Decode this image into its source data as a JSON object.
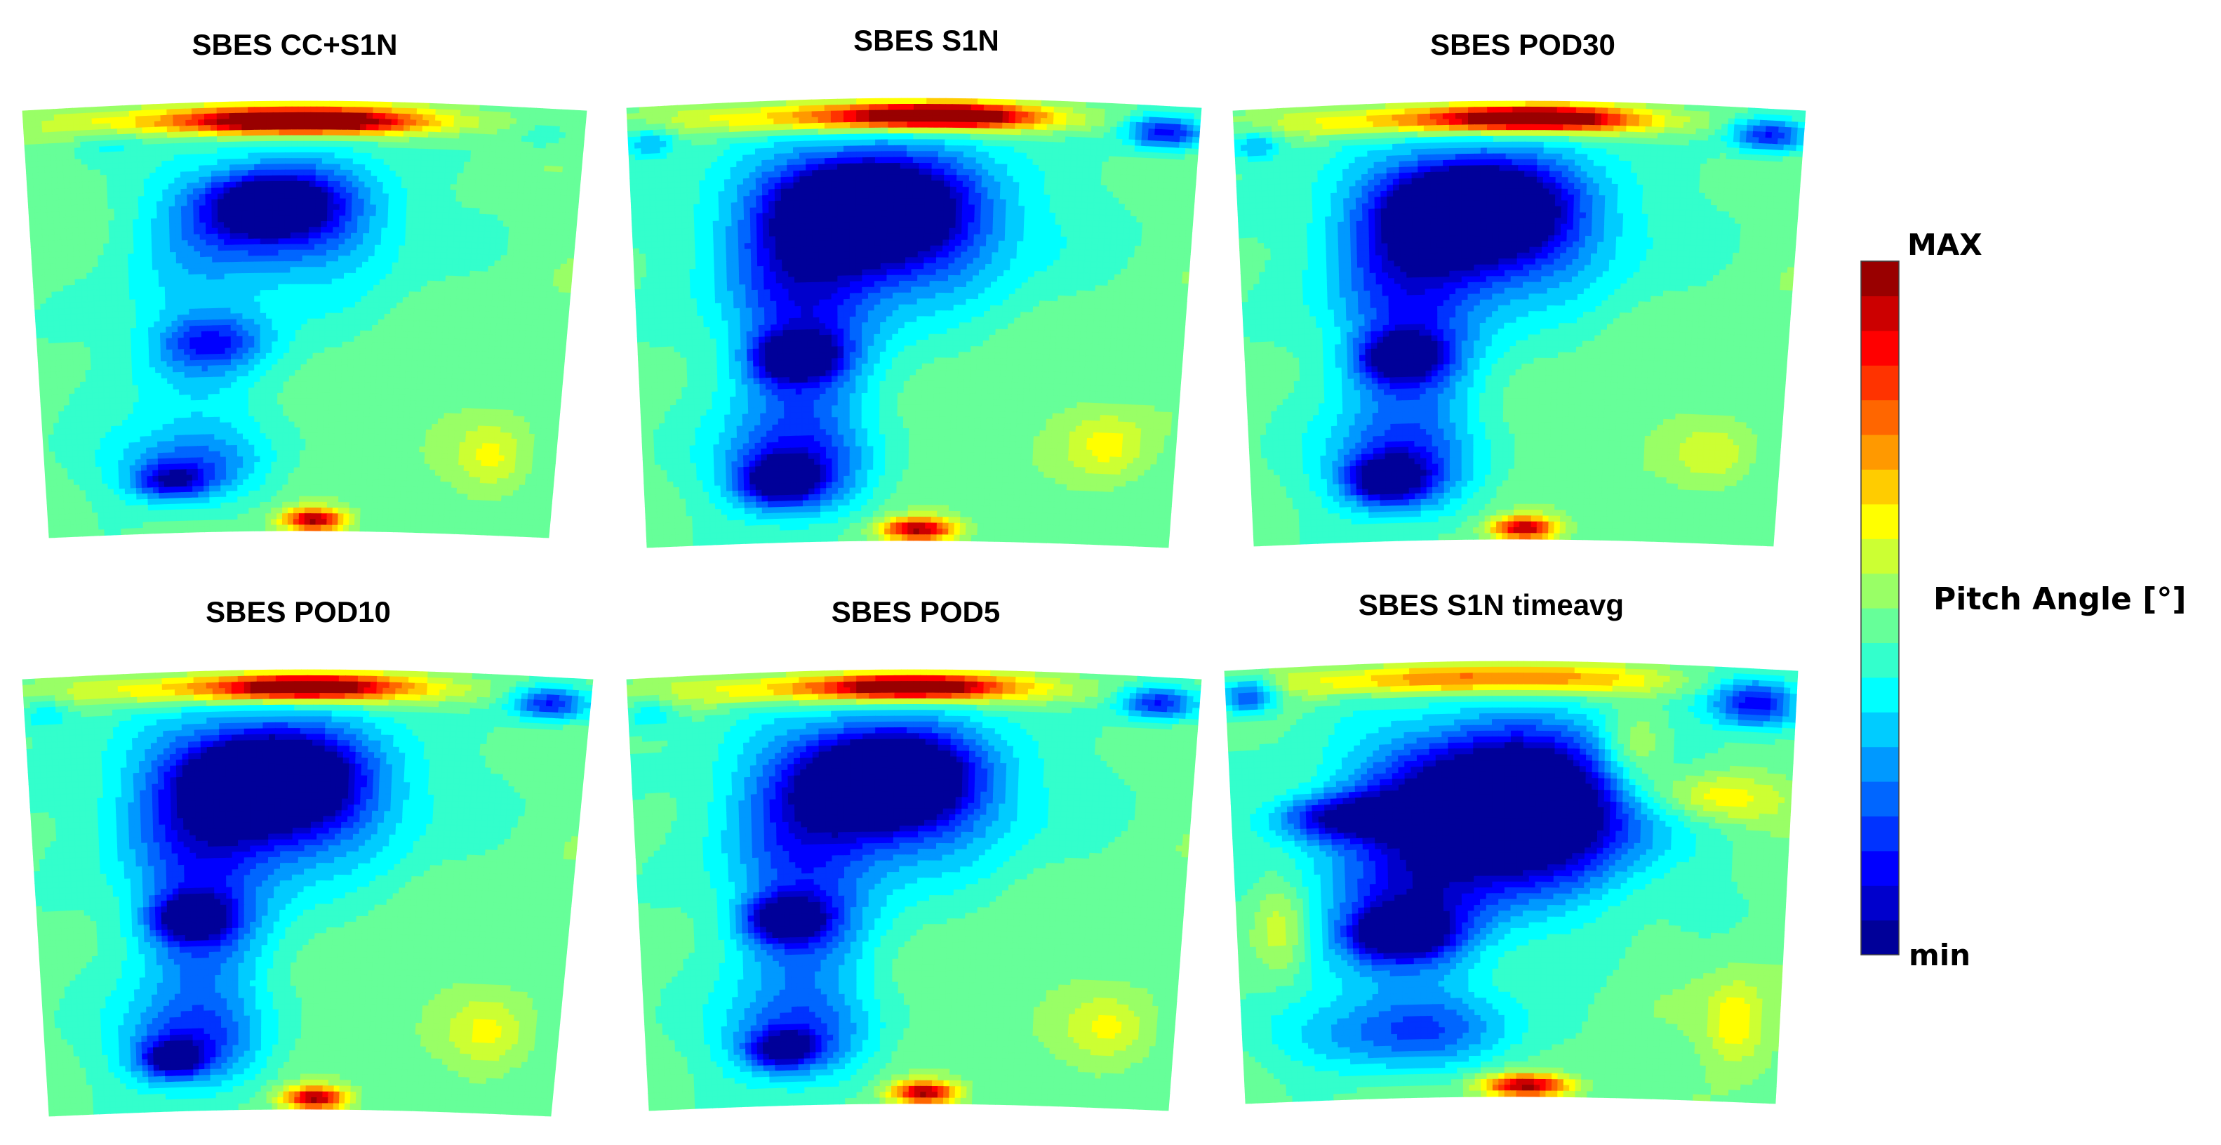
{
  "chart_data": {
    "type": "heatmap",
    "colormap": "jet (discrete, 20 levels)",
    "panels": [
      {
        "title": "SBES CC+S1N",
        "blobs": [
          {
            "u": 0.45,
            "v": 0.04,
            "a": 0.3,
            "b": 0.035,
            "val": 0.87
          },
          {
            "u": 0.5,
            "v": 0.05,
            "a": 0.16,
            "b": 0.025,
            "val": 0.93
          },
          {
            "u": 0.14,
            "v": 0.09,
            "a": 0.06,
            "b": 0.04,
            "val": 0.4
          },
          {
            "u": 0.93,
            "v": 0.06,
            "a": 0.06,
            "b": 0.04,
            "val": 0.4
          },
          {
            "u": 0.47,
            "v": 0.28,
            "a": 0.24,
            "b": 0.18,
            "val": 0.28
          },
          {
            "u": 0.44,
            "v": 0.25,
            "a": 0.15,
            "b": 0.1,
            "val": 0.18
          },
          {
            "u": 0.44,
            "v": 0.24,
            "a": 0.08,
            "b": 0.05,
            "val": 0.1
          },
          {
            "u": 0.3,
            "v": 0.58,
            "a": 0.18,
            "b": 0.24,
            "val": 0.35
          },
          {
            "u": 0.33,
            "v": 0.56,
            "a": 0.1,
            "b": 0.06,
            "val": 0.27
          },
          {
            "u": 0.27,
            "v": 0.84,
            "a": 0.15,
            "b": 0.09,
            "val": 0.26
          },
          {
            "u": 0.25,
            "v": 0.88,
            "a": 0.07,
            "b": 0.04,
            "val": 0.2
          },
          {
            "u": 0.88,
            "v": 0.82,
            "a": 0.07,
            "b": 0.08,
            "val": 0.62
          },
          {
            "u": 0.53,
            "v": 0.975,
            "a": 0.06,
            "b": 0.025,
            "val": 0.96
          }
        ]
      },
      {
        "title": "SBES S1N",
        "blobs": [
          {
            "u": 0.45,
            "v": 0.04,
            "a": 0.3,
            "b": 0.035,
            "val": 0.87
          },
          {
            "u": 0.55,
            "v": 0.04,
            "a": 0.14,
            "b": 0.025,
            "val": 0.95
          },
          {
            "u": 0.94,
            "v": 0.06,
            "a": 0.07,
            "b": 0.04,
            "val": 0.1
          },
          {
            "u": 0.04,
            "v": 0.08,
            "a": 0.05,
            "b": 0.04,
            "val": 0.3
          },
          {
            "u": 0.44,
            "v": 0.28,
            "a": 0.28,
            "b": 0.2,
            "val": 0.18
          },
          {
            "u": 0.43,
            "v": 0.26,
            "a": 0.16,
            "b": 0.12,
            "val": 0.07
          },
          {
            "u": 0.4,
            "v": 0.24,
            "a": 0.1,
            "b": 0.07,
            "val": 0.02
          },
          {
            "u": 0.3,
            "v": 0.55,
            "a": 0.14,
            "b": 0.26,
            "val": 0.18
          },
          {
            "u": 0.29,
            "v": 0.58,
            "a": 0.07,
            "b": 0.05,
            "val": 0.06
          },
          {
            "u": 0.27,
            "v": 0.83,
            "a": 0.14,
            "b": 0.11,
            "val": 0.2
          },
          {
            "u": 0.26,
            "v": 0.86,
            "a": 0.07,
            "b": 0.05,
            "val": 0.12
          },
          {
            "u": 0.88,
            "v": 0.78,
            "a": 0.08,
            "b": 0.08,
            "val": 0.62
          },
          {
            "u": 0.52,
            "v": 0.975,
            "a": 0.07,
            "b": 0.025,
            "val": 0.96
          }
        ]
      },
      {
        "title": "SBES POD30",
        "blobs": [
          {
            "u": 0.45,
            "v": 0.04,
            "a": 0.3,
            "b": 0.035,
            "val": 0.87
          },
          {
            "u": 0.53,
            "v": 0.04,
            "a": 0.13,
            "b": 0.025,
            "val": 0.93
          },
          {
            "u": 0.94,
            "v": 0.06,
            "a": 0.07,
            "b": 0.04,
            "val": 0.12
          },
          {
            "u": 0.04,
            "v": 0.08,
            "a": 0.05,
            "b": 0.04,
            "val": 0.3
          },
          {
            "u": 0.44,
            "v": 0.28,
            "a": 0.27,
            "b": 0.2,
            "val": 0.2
          },
          {
            "u": 0.43,
            "v": 0.26,
            "a": 0.16,
            "b": 0.12,
            "val": 0.08
          },
          {
            "u": 0.4,
            "v": 0.24,
            "a": 0.1,
            "b": 0.07,
            "val": 0.03
          },
          {
            "u": 0.3,
            "v": 0.55,
            "a": 0.14,
            "b": 0.26,
            "val": 0.2
          },
          {
            "u": 0.29,
            "v": 0.58,
            "a": 0.07,
            "b": 0.05,
            "val": 0.07
          },
          {
            "u": 0.27,
            "v": 0.83,
            "a": 0.14,
            "b": 0.11,
            "val": 0.22
          },
          {
            "u": 0.26,
            "v": 0.86,
            "a": 0.07,
            "b": 0.05,
            "val": 0.12
          },
          {
            "u": 0.88,
            "v": 0.8,
            "a": 0.07,
            "b": 0.07,
            "val": 0.6
          },
          {
            "u": 0.52,
            "v": 0.975,
            "a": 0.06,
            "b": 0.025,
            "val": 0.95
          }
        ]
      },
      {
        "title": "SBES POD10",
        "blobs": [
          {
            "u": 0.45,
            "v": 0.04,
            "a": 0.3,
            "b": 0.035,
            "val": 0.85
          },
          {
            "u": 0.5,
            "v": 0.04,
            "a": 0.12,
            "b": 0.025,
            "val": 0.9
          },
          {
            "u": 0.93,
            "v": 0.06,
            "a": 0.07,
            "b": 0.04,
            "val": 0.12
          },
          {
            "u": 0.04,
            "v": 0.08,
            "a": 0.05,
            "b": 0.04,
            "val": 0.35
          },
          {
            "u": 0.43,
            "v": 0.28,
            "a": 0.27,
            "b": 0.2,
            "val": 0.2
          },
          {
            "u": 0.44,
            "v": 0.26,
            "a": 0.16,
            "b": 0.12,
            "val": 0.08
          },
          {
            "u": 0.42,
            "v": 0.25,
            "a": 0.1,
            "b": 0.07,
            "val": 0.03
          },
          {
            "u": 0.31,
            "v": 0.55,
            "a": 0.14,
            "b": 0.26,
            "val": 0.22
          },
          {
            "u": 0.29,
            "v": 0.56,
            "a": 0.07,
            "b": 0.05,
            "val": 0.08
          },
          {
            "u": 0.27,
            "v": 0.84,
            "a": 0.14,
            "b": 0.11,
            "val": 0.22
          },
          {
            "u": 0.25,
            "v": 0.88,
            "a": 0.06,
            "b": 0.04,
            "val": 0.14
          },
          {
            "u": 0.87,
            "v": 0.82,
            "a": 0.08,
            "b": 0.08,
            "val": 0.62
          },
          {
            "u": 0.53,
            "v": 0.975,
            "a": 0.06,
            "b": 0.025,
            "val": 0.96
          }
        ]
      },
      {
        "title": "SBES POD5",
        "blobs": [
          {
            "u": 0.45,
            "v": 0.04,
            "a": 0.3,
            "b": 0.035,
            "val": 0.85
          },
          {
            "u": 0.5,
            "v": 0.04,
            "a": 0.12,
            "b": 0.025,
            "val": 0.9
          },
          {
            "u": 0.93,
            "v": 0.06,
            "a": 0.07,
            "b": 0.04,
            "val": 0.12
          },
          {
            "u": 0.04,
            "v": 0.08,
            "a": 0.05,
            "b": 0.04,
            "val": 0.35
          },
          {
            "u": 0.45,
            "v": 0.28,
            "a": 0.27,
            "b": 0.2,
            "val": 0.22
          },
          {
            "u": 0.45,
            "v": 0.26,
            "a": 0.16,
            "b": 0.12,
            "val": 0.09
          },
          {
            "u": 0.45,
            "v": 0.25,
            "a": 0.1,
            "b": 0.07,
            "val": 0.04
          },
          {
            "u": 0.3,
            "v": 0.55,
            "a": 0.14,
            "b": 0.26,
            "val": 0.22
          },
          {
            "u": 0.27,
            "v": 0.57,
            "a": 0.07,
            "b": 0.05,
            "val": 0.08
          },
          {
            "u": 0.27,
            "v": 0.84,
            "a": 0.14,
            "b": 0.11,
            "val": 0.24
          },
          {
            "u": 0.26,
            "v": 0.87,
            "a": 0.06,
            "b": 0.04,
            "val": 0.15
          },
          {
            "u": 0.88,
            "v": 0.82,
            "a": 0.08,
            "b": 0.08,
            "val": 0.62
          },
          {
            "u": 0.53,
            "v": 0.975,
            "a": 0.06,
            "b": 0.025,
            "val": 0.96
          }
        ]
      },
      {
        "title": "SBES S1N timeavg",
        "blobs": [
          {
            "u": 0.45,
            "v": 0.04,
            "a": 0.3,
            "b": 0.035,
            "val": 0.82
          },
          {
            "u": 0.93,
            "v": 0.08,
            "a": 0.08,
            "b": 0.06,
            "val": 0.1
          },
          {
            "u": 0.04,
            "v": 0.06,
            "a": 0.05,
            "b": 0.04,
            "val": 0.15
          },
          {
            "u": 0.47,
            "v": 0.35,
            "a": 0.28,
            "b": 0.22,
            "val": 0.12
          },
          {
            "u": 0.5,
            "v": 0.33,
            "a": 0.2,
            "b": 0.15,
            "val": 0.02
          },
          {
            "u": 0.2,
            "v": 0.35,
            "a": 0.12,
            "b": 0.05,
            "val": 0.15
          },
          {
            "u": 0.3,
            "v": 0.6,
            "a": 0.16,
            "b": 0.16,
            "val": 0.18
          },
          {
            "u": 0.3,
            "v": 0.62,
            "a": 0.08,
            "b": 0.05,
            "val": 0.06
          },
          {
            "u": 0.3,
            "v": 0.85,
            "a": 0.22,
            "b": 0.09,
            "val": 0.22
          },
          {
            "u": 0.72,
            "v": 0.2,
            "a": 0.06,
            "b": 0.1,
            "val": 0.65
          },
          {
            "u": 0.86,
            "v": 0.3,
            "a": 0.12,
            "b": 0.06,
            "val": 0.7
          },
          {
            "u": 0.08,
            "v": 0.6,
            "a": 0.05,
            "b": 0.12,
            "val": 0.62
          },
          {
            "u": 0.92,
            "v": 0.82,
            "a": 0.06,
            "b": 0.1,
            "val": 0.66
          },
          {
            "u": 0.53,
            "v": 0.975,
            "a": 0.08,
            "b": 0.025,
            "val": 0.97
          }
        ]
      }
    ],
    "colorbar": {
      "max_label": "MAX",
      "min_label": "min",
      "label": "Pitch Angle [°]",
      "levels": 20
    }
  }
}
